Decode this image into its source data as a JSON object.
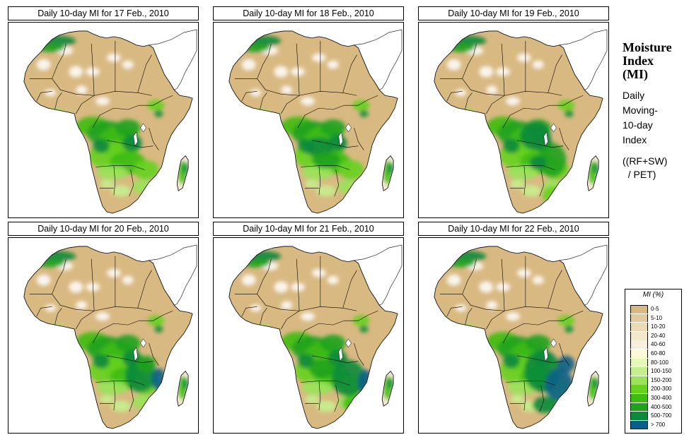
{
  "panels": [
    {
      "title": "Daily 10-day MI for 17 Feb., 2010",
      "variant": 0
    },
    {
      "title": "Daily 10-day MI for 18 Feb., 2010",
      "variant": 1
    },
    {
      "title": "Daily 10-day MI for 19 Feb., 2010",
      "variant": 2
    },
    {
      "title": "Daily 10-day MI for 20 Feb., 2010",
      "variant": 3
    },
    {
      "title": "Daily 10-day MI for 21 Feb., 2010",
      "variant": 4
    },
    {
      "title": "Daily 10-day MI for 22 Feb., 2010",
      "variant": 5
    }
  ],
  "side": {
    "title_line1": "Moisture",
    "title_line2": "Index",
    "title_line3": "(MI)",
    "desc_line1": "Daily",
    "desc_line2": "Moving-",
    "desc_line3": "10-day",
    "desc_line4": "Index",
    "formula_line1": "((RF+SW)",
    "formula_line2": "  / PET)"
  },
  "legend": {
    "title": "MI (%)",
    "classes": [
      {
        "label": "0-5",
        "color": "#d9b982"
      },
      {
        "label": "5-10",
        "color": "#e3c99b"
      },
      {
        "label": "10-20",
        "color": "#ecd9b5"
      },
      {
        "label": "20-40",
        "color": "#f3e7cd"
      },
      {
        "label": "40-60",
        "color": "#f8f0dc"
      },
      {
        "label": "60-80",
        "color": "#fbf9d6"
      },
      {
        "label": "80-100",
        "color": "#e6f7bb"
      },
      {
        "label": "100-150",
        "color": "#c5ef8f"
      },
      {
        "label": "150-200",
        "color": "#9ae35a"
      },
      {
        "label": "200-300",
        "color": "#66d21c"
      },
      {
        "label": "300-400",
        "color": "#3ebc12"
      },
      {
        "label": "400-500",
        "color": "#1fa21c"
      },
      {
        "label": "500-700",
        "color": "#0c8a3c"
      },
      {
        "label": "> 700",
        "color": "#0a5f8a"
      }
    ]
  }
}
